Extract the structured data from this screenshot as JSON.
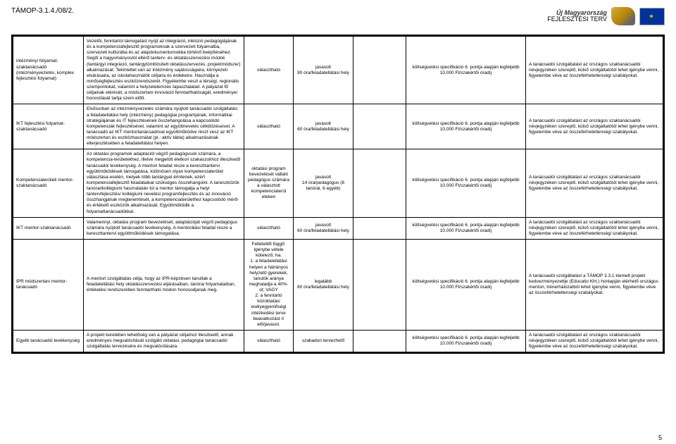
{
  "header": {
    "code": "TÁMOP-3.1.4./08/2."
  },
  "logo": {
    "line1": "Új Magyarország",
    "line2": "FEJLESZTÉSI TERV"
  },
  "pagenum": "5",
  "rows": [
    {
      "c0": "intézményi folyamat-szaktanácsadó (intézményvezetés, komplex fejlesztési folyamat)",
      "c1": "Vezetői, fenntartói támogatást nyújt az integráció, inklúzió pedagógiájának és a kompetenciafejlesztő programoknak a szervezeti folyamatba, szervezeti kultúrába és az alapdokumentumokba történő beépítéséhez. Segíti a hagyományostól eltérő tanterv- és oktatásszervezési módok (tantárgyi integráció, tantárgytömbösített oktatásszervezés, projektmódszer) alkalmazását. Tekintettel van az intézmény sajátosságaira, környezeti elvárásaira, az iskolahasználók céljaira és érdekeire. Használja a minőségfejlesztés eszközrendszerét. Figyelembe veszi a térségi, regionális szempontokat, valamint a helyzetelemzés tapasztalatait. A pályázat fő céljainak elérését, a módszertani innováció fenntarthatóságát, eredményei honosítását tartja szem előtt.",
      "c2": "választható",
      "c3": "javasolt\n90 óra/feladatellátási hely",
      "c4": "",
      "c5": "költségvetési specifikáció 6. pontja alapján legfeljebb 10.000 Ft/szakértői óradíj",
      "c6": "A tanácsadói szolgáltatást az országos szaktanácsadói névjegyzéken szereplő, külső szolgáltatótól lehet igénybe venni, figyelembe véve az összeférhetetlenségi szabályokat."
    },
    {
      "c0": "IKT fejlesztési folyamat-szaktanácsadó",
      "c1": "Elsősorban az intézményvezetés számára nyújtott tanácsadói szolgáltatás: a feladatellátási hely (intézmény) pedagógiai programjának, informatikai stratégiájának és IT fejlesztésének összehangolása a kapcsolódó kompetenciák fejlesztésével, valamint az együttnevelés célkitűzéseivel. A tanácsadó az IKT mentortanácsadóval együttműködve részt vesz az IKT módszertan és eszközhasználat (pl.: aktív tábla) alkalmazásának elterjesztésében a feladatellátási helyen.",
      "c2": "választható",
      "c3": "javasolt\n60 óra/feladatellátási hely",
      "c4": "",
      "c5": "költségvetési specifikáció 6. pontja alapján legfeljebb 10.000 Ft/szakértői óradíj",
      "c6": "A tanácsadói szolgáltatást az országos szaktanácsadói névjegyzéken szereplő, külső szolgáltatótól lehet igénybe venni, figyelembe véve az összeférhetetlenségi szabályokat."
    },
    {
      "c0": "Kompetenciaterületi mentor-szaktanácsadó",
      "c1": "Az oktatási programok adaptációt végző pedagógusok számára, a kompetencia-területekhez, illetve megjelölt életkori szakaszokhoz illeszkedő tanácsadói tevékenység. A mentori feladat része a kereszttantervi együttműködések támogatása, különösen olyan kompetenciaterület választása esetén, melyek több tantárgyat érintenek, ezért kompetenciafejlesztő feladataikat szükséges összehangolni. A taneszközök tanórai/kollégiumi használatán túl a mentor támogatja a helyi tantervfejlesztés/ kollégiumi nevelési programfejlesztés és az innováció összhangjának megteremtését, a kompetenciaterülethez kapcsolódó mérő- és értékelő eszközök alkalmazását. Együttműködik a folyamattanácsadókkal.",
      "c2": "oktatási program bevezetését vállaló pedagógus számára a választott kompetenciaterül eteken",
      "c3": "javasolt\n14 óra/pedagógus (8 tanórai, 6 egyéb)",
      "c4": "",
      "c5": "költségvetési specifikáció 6. pontja alapján legfeljebb 10.000 Ft/szakértői óradíj",
      "c6": "A tanácsadói szolgáltatást az országos szaktanácsadói névjegyzéken szereplő, külső szolgáltatótól lehet igénybe venni, figyelembe véve az összeférhetetlenségi szabályokat."
    },
    {
      "c0": "IKT mentor-szaktanácsadó",
      "c1": "Valamennyi, oktatási program bevezetését, adaptációját végző pedagógus számára nyújtott tanácsadói tevékenység. A mentorálási feladat része a kereszttantervi együttműködések támogatása.",
      "c2": "választható",
      "c3": "javasolt\n60 óra/feladatellátási hely",
      "c4": "",
      "c5": "költségvetési specifikáció 6. pontja alapján legfeljebb 10.000 Ft/szakértői óradíj",
      "c6": "A tanácsadói szolgáltatást az országos szaktanácsadói névjegyzéken szereplő, külső szolgáltatótól lehet igénybe venni, figyelembe véve az összeférhetetlenségi szabályokat."
    },
    {
      "c0": "IPR módszertani mentor-tanácsadó",
      "c1": "A mentori szolgáltatás célja, hogy az IPR-képzésen tanultak a feladatellátási hely oktatásszervezési eljárásaiban, tanórai folyamataiban, értékelési rendszerében fenntartható módon honosodjanak meg.",
      "c2": "Feltételtől függő: Igénybe vétele kötelező, ha:\n1. a feladatellátási helyen a hátrányos helyzetű gyerekek, tanulók aránya meghaladja a 40%-ot; VAGY\n2. a fenntartó közoktatási esélyegyenlőségi intézkedési terve beavatkozást ír elő/javasol.",
      "c3": "legalább\n60 óra/feladatellátási hely",
      "c4": "",
      "c5": "költségvetési specifikáció 6. pontja alapján legfeljebb 10.000 Ft/szakértői óradíj",
      "c6": "A tanácsadói szolgáltatást a TÁMOP 3.3.1 kiemelt projekt kedvezményezettje (Educatio Kht.) honlapján elérhető országos mentori, trénerhálózatból lehet igénybe venni, figyelembe véve az összeférhetetlenségi szabályokat."
    },
    {
      "c0": "Egyéb tanácsadói tevékenység",
      "c1": "A projekt keretében lehetőség van a pályázat céljaihoz illeszkedő, annak eredményes megvalósítását szolgáló oktatási, pedagógiai tanácsadói szolgáltatás tervezésére és megvalósítására.",
      "c2": "választható",
      "c3": "szabadon tervezhető",
      "c4": "",
      "c5": "költségvetési specifikáció 6. pontja alapján legfeljebb 10.000 Ft/szakértői óradíj",
      "c6": "A tanácsadói szolgáltatást az országos szaktanácsadói névjegyzéken szereplő, külső szolgáltatótól lehet igénybe venni, figyelembe véve az összeférhetetlenségi szabályokat."
    }
  ]
}
